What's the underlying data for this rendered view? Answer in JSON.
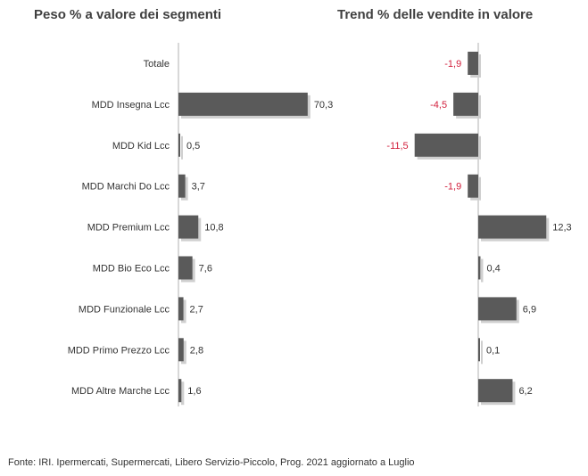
{
  "left_title": "Peso % a valore dei segmenti",
  "right_title": "Trend % delle vendite in valore",
  "footnote": "Fonte: IRI. Ipermercati, Supermercati, Libero Servizio-Piccolo, Prog. 2021 aggiornato a Luglio",
  "colors": {
    "bar": "#5a5a5a",
    "negative_label": "#d21f3c",
    "axis": "#b0b0b0"
  },
  "chart_data": [
    {
      "type": "bar",
      "orientation": "horizontal",
      "title": "Peso % a valore dei segmenti",
      "categories": [
        "Totale",
        "MDD Insegna Lcc",
        "MDD Kid Lcc",
        "MDD Marchi Do Lcc",
        "MDD Premium Lcc",
        "MDD Bio Eco Lcc",
        "MDD Funzionale Lcc",
        "MDD Primo Prezzo Lcc",
        "MDD Altre Marche Lcc"
      ],
      "values": [
        null,
        70.3,
        0.5,
        3.7,
        10.8,
        7.6,
        2.7,
        2.8,
        1.6
      ],
      "labels": [
        "",
        "70,3",
        "0,5",
        "3,7",
        "10,8",
        "7,6",
        "2,7",
        "2,8",
        "1,6"
      ]
    },
    {
      "type": "bar",
      "orientation": "horizontal",
      "title": "Trend % delle vendite in valore",
      "categories": [
        "Totale",
        "MDD Insegna Lcc",
        "MDD Kid Lcc",
        "MDD Marchi Do Lcc",
        "MDD Premium Lcc",
        "MDD Bio Eco Lcc",
        "MDD Funzionale Lcc",
        "MDD Primo Prezzo Lcc",
        "MDD Altre Marche Lcc"
      ],
      "values": [
        -1.9,
        -4.5,
        -11.5,
        -1.9,
        12.3,
        0.4,
        6.9,
        0.1,
        6.2
      ],
      "labels": [
        "-1,9",
        "-4,5",
        "-11,5",
        "-1,9",
        "12,3",
        "0,4",
        "6,9",
        "0,1",
        "6,2"
      ]
    }
  ]
}
